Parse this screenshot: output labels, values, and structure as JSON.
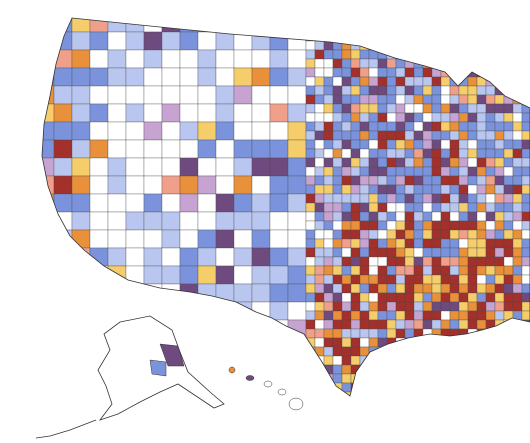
{
  "map": {
    "colors": [
      "#ffffff",
      "#b9c7f0",
      "#7b93dc",
      "#6e4a7e",
      "#c6a3d1",
      "#f5cd6a",
      "#e8913a",
      "#a3302a",
      "#f0a08a"
    ]
  }
}
